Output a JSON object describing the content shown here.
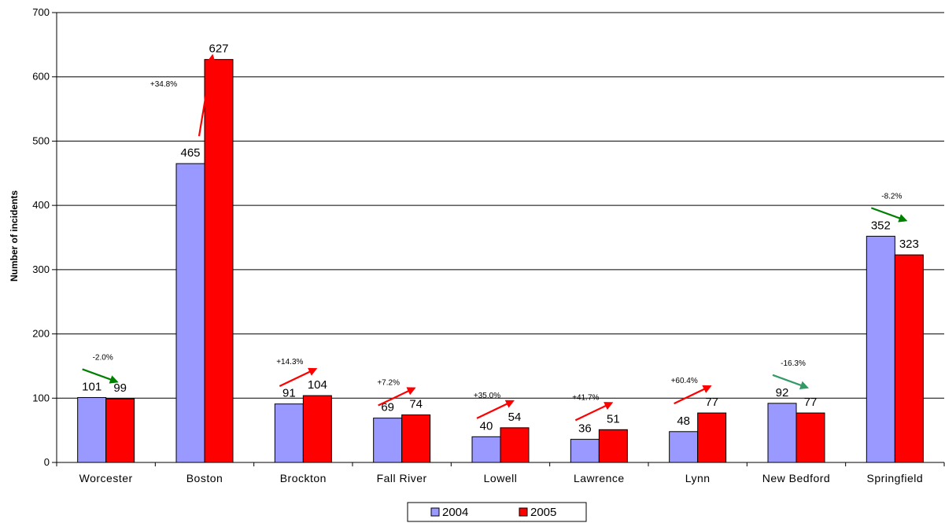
{
  "chart_data": {
    "type": "bar",
    "title": "",
    "xlabel": "",
    "ylabel": "Number of incidents",
    "ylim": [
      0,
      700
    ],
    "yticks": [
      0,
      100,
      200,
      300,
      400,
      500,
      600,
      700
    ],
    "grid": true,
    "legend_position": "bottom",
    "categories": [
      "Worcester",
      "Boston",
      "Brockton",
      "Fall River",
      "Lowell",
      "Lawrence",
      "Lynn",
      "New Bedford",
      "Springfield"
    ],
    "series": [
      {
        "name": "2004",
        "color": "#9999ff",
        "values": [
          101,
          465,
          91,
          69,
          40,
          36,
          48,
          92,
          352
        ]
      },
      {
        "name": "2005",
        "color": "#ff0000",
        "values": [
          99,
          627,
          104,
          74,
          54,
          51,
          77,
          77,
          323
        ]
      }
    ],
    "annotations": [
      {
        "category": "Worcester",
        "label": "-2.0%",
        "direction": "down",
        "color": "#008000"
      },
      {
        "category": "Boston",
        "label": "+34.8%",
        "direction": "up",
        "color": "#ff0000"
      },
      {
        "category": "Brockton",
        "label": "+14.3%",
        "direction": "up",
        "color": "#ff0000"
      },
      {
        "category": "Fall River",
        "label": "+7.2%",
        "direction": "up",
        "color": "#ff0000"
      },
      {
        "category": "Lowell",
        "label": "+35.0%",
        "direction": "up",
        "color": "#ff0000"
      },
      {
        "category": "Lawrence",
        "label": "+41.7%",
        "direction": "up",
        "color": "#ff0000"
      },
      {
        "category": "Lynn",
        "label": "+60.4%",
        "direction": "up",
        "color": "#ff0000"
      },
      {
        "category": "New Bedford",
        "label": "-16.3%",
        "direction": "down",
        "color": "#339966"
      },
      {
        "category": "Springfield",
        "label": "-8.2%",
        "direction": "down",
        "color": "#008000"
      }
    ]
  }
}
